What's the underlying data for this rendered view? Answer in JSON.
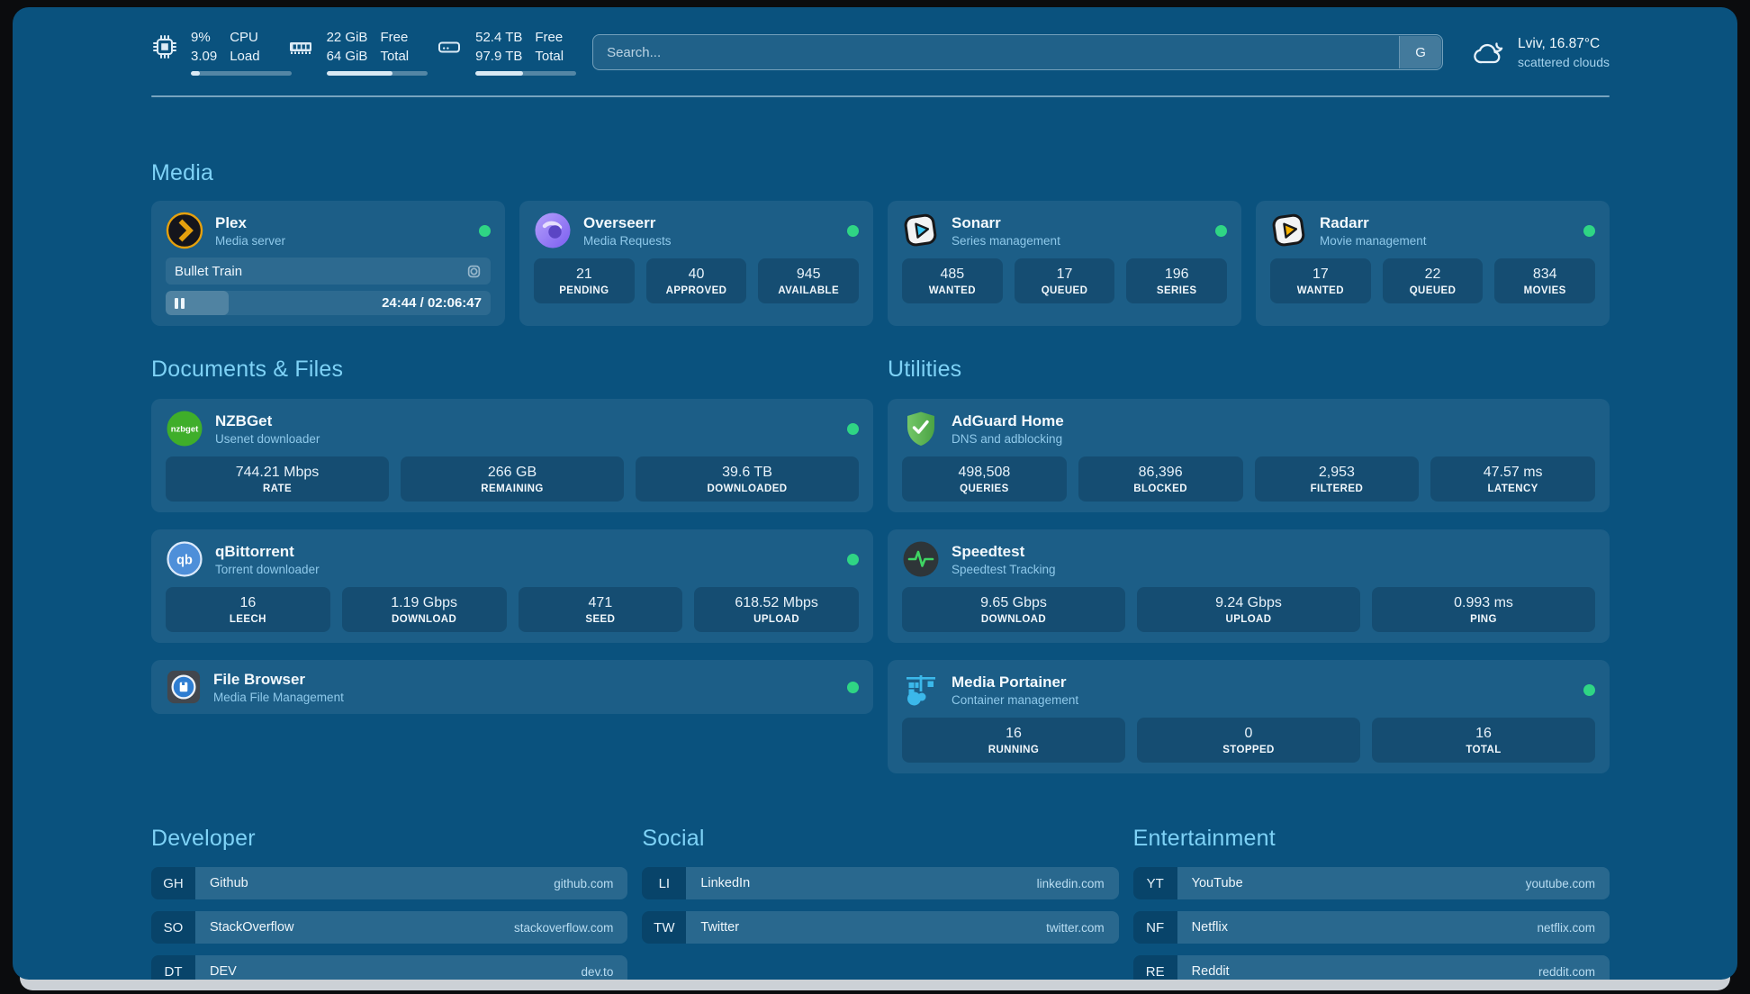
{
  "colors": {
    "background": "#0a527e",
    "section_title": "#7ed2f6",
    "status_online": "#2fd584"
  },
  "header": {
    "resources": [
      {
        "icon": "cpu-icon",
        "values": [
          "9%",
          "3.09"
        ],
        "labels": [
          "CPU",
          "Load"
        ],
        "progress_pct": 9
      },
      {
        "icon": "memory-icon",
        "values": [
          "22 GiB",
          "64 GiB"
        ],
        "labels": [
          "Free",
          "Total"
        ],
        "progress_pct": 66
      },
      {
        "icon": "disk-icon",
        "values": [
          "52.4 TB",
          "97.9 TB"
        ],
        "labels": [
          "Free",
          "Total"
        ],
        "progress_pct": 47
      }
    ],
    "search": {
      "placeholder": "Search...",
      "button_label": "G"
    },
    "weather": {
      "title": "Lviv, 16.87°C",
      "subtitle": "scattered clouds"
    }
  },
  "media": {
    "title": "Media",
    "cards": [
      {
        "title": "Plex",
        "subtitle": "Media server",
        "online": true,
        "now_playing": {
          "title": "Bullet Train",
          "time": "24:44 / 02:06:47",
          "progress_pct": 19.5
        }
      },
      {
        "title": "Overseerr",
        "subtitle": "Media Requests",
        "online": true,
        "stats": [
          {
            "value": "21",
            "label": "PENDING"
          },
          {
            "value": "40",
            "label": "APPROVED"
          },
          {
            "value": "945",
            "label": "AVAILABLE"
          }
        ]
      },
      {
        "title": "Sonarr",
        "subtitle": "Series management",
        "online": true,
        "stats": [
          {
            "value": "485",
            "label": "WANTED"
          },
          {
            "value": "17",
            "label": "QUEUED"
          },
          {
            "value": "196",
            "label": "SERIES"
          }
        ]
      },
      {
        "title": "Radarr",
        "subtitle": "Movie management",
        "online": true,
        "stats": [
          {
            "value": "17",
            "label": "WANTED"
          },
          {
            "value": "22",
            "label": "QUEUED"
          },
          {
            "value": "834",
            "label": "MOVIES"
          }
        ]
      }
    ]
  },
  "documents": {
    "title": "Documents & Files",
    "cards": [
      {
        "title": "NZBGet",
        "subtitle": "Usenet downloader",
        "online": true,
        "stats": [
          {
            "value": "744.21 Mbps",
            "label": "RATE"
          },
          {
            "value": "266 GB",
            "label": "REMAINING"
          },
          {
            "value": "39.6 TB",
            "label": "DOWNLOADED"
          }
        ]
      },
      {
        "title": "qBittorrent",
        "subtitle": "Torrent downloader",
        "online": true,
        "stats": [
          {
            "value": "16",
            "label": "LEECH"
          },
          {
            "value": "1.19 Gbps",
            "label": "DOWNLOAD"
          },
          {
            "value": "471",
            "label": "SEED"
          },
          {
            "value": "618.52 Mbps",
            "label": "UPLOAD"
          }
        ]
      },
      {
        "title": "File Browser",
        "subtitle": "Media File Management",
        "online": true
      }
    ]
  },
  "utilities": {
    "title": "Utilities",
    "cards": [
      {
        "title": "AdGuard Home",
        "subtitle": "DNS and adblocking",
        "stats": [
          {
            "value": "498,508",
            "label": "QUERIES"
          },
          {
            "value": "86,396",
            "label": "BLOCKED"
          },
          {
            "value": "2,953",
            "label": "FILTERED"
          },
          {
            "value": "47.57 ms",
            "label": "LATENCY"
          }
        ]
      },
      {
        "title": "Speedtest",
        "subtitle": "Speedtest Tracking",
        "stats": [
          {
            "value": "9.65 Gbps",
            "label": "DOWNLOAD"
          },
          {
            "value": "9.24 Gbps",
            "label": "UPLOAD"
          },
          {
            "value": "0.993 ms",
            "label": "PING"
          }
        ]
      },
      {
        "title": "Media Portainer",
        "subtitle": "Container management",
        "online": true,
        "stats": [
          {
            "value": "16",
            "label": "RUNNING"
          },
          {
            "value": "0",
            "label": "STOPPED"
          },
          {
            "value": "16",
            "label": "TOTAL"
          }
        ]
      }
    ]
  },
  "bookmarks": [
    {
      "title": "Developer",
      "items": [
        {
          "abbr": "GH",
          "name": "Github",
          "url": "github.com"
        },
        {
          "abbr": "SO",
          "name": "StackOverflow",
          "url": "stackoverflow.com"
        },
        {
          "abbr": "DT",
          "name": "DEV",
          "url": "dev.to"
        }
      ]
    },
    {
      "title": "Social",
      "items": [
        {
          "abbr": "LI",
          "name": "LinkedIn",
          "url": "linkedin.com"
        },
        {
          "abbr": "TW",
          "name": "Twitter",
          "url": "twitter.com"
        }
      ]
    },
    {
      "title": "Entertainment",
      "items": [
        {
          "abbr": "YT",
          "name": "YouTube",
          "url": "youtube.com"
        },
        {
          "abbr": "NF",
          "name": "Netflix",
          "url": "netflix.com"
        },
        {
          "abbr": "RE",
          "name": "Reddit",
          "url": "reddit.com"
        }
      ]
    }
  ]
}
